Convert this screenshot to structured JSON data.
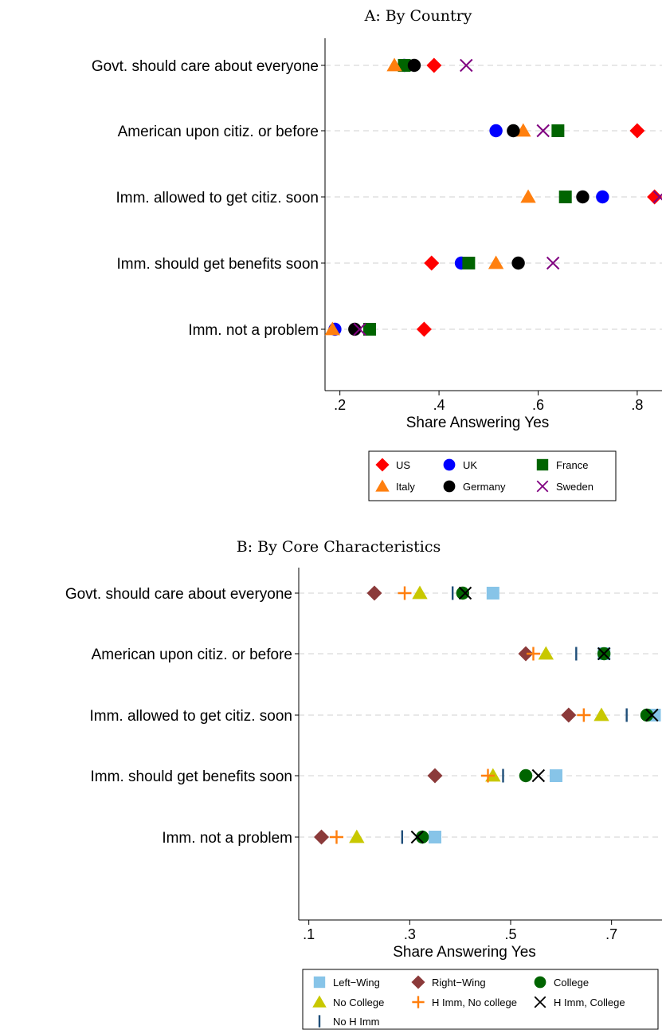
{
  "chart_data": [
    {
      "type": "scatter",
      "title": "A: By Country",
      "xlabel": "Share Answering Yes",
      "ylabel": "",
      "xlim": [
        0.17,
        0.85
      ],
      "x_ticks": [
        0.2,
        0.4,
        0.6,
        0.8
      ],
      "x_tick_labels": [
        ".2",
        ".4",
        ".6",
        ".8"
      ],
      "categories": [
        "Govt. should care about everyone",
        "American upon citiz. or before",
        "Imm. allowed to get citiz. soon",
        "Imm. should get benefits soon",
        "Imm. not a problem"
      ],
      "grid": "horizontal dashed",
      "legend_position": "bottom",
      "series": [
        {
          "name": "US",
          "marker": "diamond",
          "color": "#ff0000",
          "values": [
            0.39,
            0.8,
            0.835,
            0.385,
            0.37
          ]
        },
        {
          "name": "UK",
          "marker": "circle",
          "color": "#0000ff",
          "values": [
            0.33,
            0.515,
            0.73,
            0.445,
            0.19
          ]
        },
        {
          "name": "France",
          "marker": "square",
          "color": "#006400",
          "values": [
            0.33,
            0.64,
            0.655,
            0.46,
            0.26
          ]
        },
        {
          "name": "Italy",
          "marker": "triangle",
          "color": "#ff7f0e",
          "values": [
            0.31,
            0.57,
            0.58,
            0.515,
            0.185
          ]
        },
        {
          "name": "Germany",
          "marker": "dot",
          "color": "#000000",
          "values": [
            0.35,
            0.55,
            0.69,
            0.56,
            0.23
          ]
        },
        {
          "name": "Sweden",
          "marker": "x",
          "color": "#800080",
          "values": [
            0.455,
            0.61,
            0.845,
            0.63,
            0.24
          ]
        }
      ]
    },
    {
      "type": "scatter",
      "title": "B: By Core Characteristics",
      "xlabel": "Share Answering Yes",
      "ylabel": "",
      "xlim": [
        0.08,
        0.8
      ],
      "x_ticks": [
        0.1,
        0.3,
        0.5,
        0.7
      ],
      "x_tick_labels": [
        ".1",
        ".3",
        ".5",
        ".7"
      ],
      "categories": [
        "Govt. should care about everyone",
        "American upon citiz. or before",
        "Imm. allowed to get citiz. soon",
        "Imm. should get benefits soon",
        "Imm. not a problem"
      ],
      "grid": "horizontal dashed",
      "legend_position": "bottom",
      "series": [
        {
          "name": "Left−Wing",
          "marker": "square",
          "color": "#87c4e8",
          "values": [
            0.465,
            0.685,
            0.785,
            0.59,
            0.35
          ]
        },
        {
          "name": "Right−Wing",
          "marker": "diamond",
          "color": "#8b3a3a",
          "values": [
            0.23,
            0.53,
            0.615,
            0.35,
            0.125
          ]
        },
        {
          "name": "College",
          "marker": "circle",
          "color": "#006400",
          "values": [
            0.405,
            0.685,
            0.77,
            0.53,
            0.325
          ]
        },
        {
          "name": "No College",
          "marker": "triangle",
          "color": "#c8c800",
          "values": [
            0.32,
            0.57,
            0.68,
            0.465,
            0.195
          ]
        },
        {
          "name": "H Imm, No college",
          "marker": "plus",
          "color": "#ff7f0e",
          "values": [
            0.29,
            0.545,
            0.645,
            0.455,
            0.155
          ]
        },
        {
          "name": "H Imm, College",
          "marker": "x",
          "color": "#000000",
          "values": [
            0.41,
            0.685,
            0.78,
            0.555,
            0.315
          ]
        },
        {
          "name": "No H Imm",
          "marker": "vline",
          "color": "#1f4e79",
          "values": [
            0.385,
            0.63,
            0.73,
            0.485,
            0.285
          ]
        }
      ]
    }
  ]
}
